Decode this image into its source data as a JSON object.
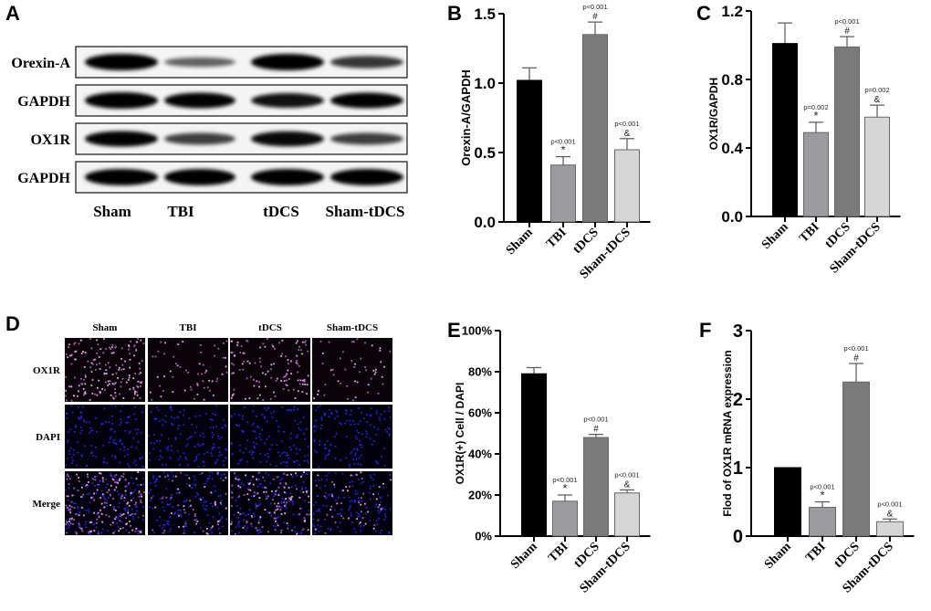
{
  "groups": [
    "Sham",
    "TBI",
    "tDCS",
    "Sham-tDCS"
  ],
  "colors": {
    "Sham": "#000000",
    "TBI": "#9b9ba0",
    "tDCS": "#7a7a7a",
    "Sham-tDCS": "#d6d6d6"
  },
  "panel_a": {
    "letter": "A",
    "rows": [
      "Orexin-A",
      "GAPDH",
      "OX1R",
      "GAPDH"
    ],
    "lanes": [
      "Sham",
      "TBI",
      "tDCS",
      "Sham-tDCS"
    ]
  },
  "panel_d": {
    "letter": "D",
    "columns": [
      "Sham",
      "TBI",
      "tDCS",
      "Sham-tDCS"
    ],
    "rows": [
      "OX1R",
      "DAPI",
      "Merge"
    ]
  },
  "chart_data": [
    {
      "panel": "B",
      "type": "bar",
      "categories": [
        "Sham",
        "TBI",
        "tDCS",
        "Sham-tDCS"
      ],
      "values": [
        1.02,
        0.41,
        1.35,
        0.52
      ],
      "errors": [
        0.09,
        0.06,
        0.09,
        0.08
      ],
      "annotations": [
        null,
        {
          "p": "p<0.001",
          "mark": "*"
        },
        {
          "p": "p<0.001",
          "mark": "#"
        },
        {
          "p": "p<0.001",
          "mark": "&"
        }
      ],
      "ylabel": "Orexin-A/GAPDH",
      "ylim": [
        0,
        1.5
      ],
      "yticks": [
        "0.0",
        "0.5",
        "1.0",
        "1.5"
      ],
      "ytick_values": [
        0,
        0.5,
        1.0,
        1.5
      ]
    },
    {
      "panel": "C",
      "type": "bar",
      "categories": [
        "Sham",
        "TBI",
        "tDCS",
        "Sham-tDCS"
      ],
      "values": [
        1.01,
        0.49,
        0.99,
        0.58
      ],
      "errors": [
        0.12,
        0.06,
        0.06,
        0.07
      ],
      "annotations": [
        null,
        {
          "p": "p=0.002",
          "mark": "*"
        },
        {
          "p": "p<0.001",
          "mark": "#"
        },
        {
          "p": "p=0.002",
          "mark": "&"
        }
      ],
      "ylabel": "OX1R/GAPDH",
      "ylim": [
        0,
        1.2
      ],
      "yticks": [
        "0.0",
        "0.4",
        "0.8",
        "1.2"
      ],
      "ytick_values": [
        0,
        0.4,
        0.8,
        1.2
      ]
    },
    {
      "panel": "E",
      "type": "bar",
      "categories": [
        "Sham",
        "TBI",
        "tDCS",
        "Sham-tDCS"
      ],
      "values": [
        79,
        17,
        48,
        21
      ],
      "errors": [
        3,
        3,
        1.5,
        1.5
      ],
      "annotations": [
        null,
        {
          "p": "p<0.001",
          "mark": "*"
        },
        {
          "p": "p<0.001",
          "mark": "#"
        },
        {
          "p": "p<0.001",
          "mark": "&"
        }
      ],
      "ylabel": "OX1R(+) Cell / DAPI",
      "ylim": [
        0,
        100
      ],
      "yticks": [
        "0%",
        "20%",
        "40%",
        "60%",
        "80%",
        "100%"
      ],
      "ytick_values": [
        0,
        20,
        40,
        60,
        80,
        100
      ]
    },
    {
      "panel": "F",
      "type": "bar",
      "categories": [
        "Sham",
        "TBI",
        "tDCS",
        "Sham-tDCS"
      ],
      "values": [
        1.0,
        0.42,
        2.25,
        0.21
      ],
      "errors": [
        0,
        0.08,
        0.27,
        0.04
      ],
      "annotations": [
        null,
        {
          "p": "p<0.001",
          "mark": "*"
        },
        {
          "p": "p<0.001",
          "mark": "#"
        },
        {
          "p": "p<0.001",
          "mark": "&"
        }
      ],
      "ylabel": "Flod of OX1R mRNA expression",
      "ylim": [
        0,
        3
      ],
      "yticks": [
        "0",
        "1",
        "2",
        "3"
      ],
      "ytick_values": [
        0,
        1,
        2,
        3
      ]
    }
  ]
}
